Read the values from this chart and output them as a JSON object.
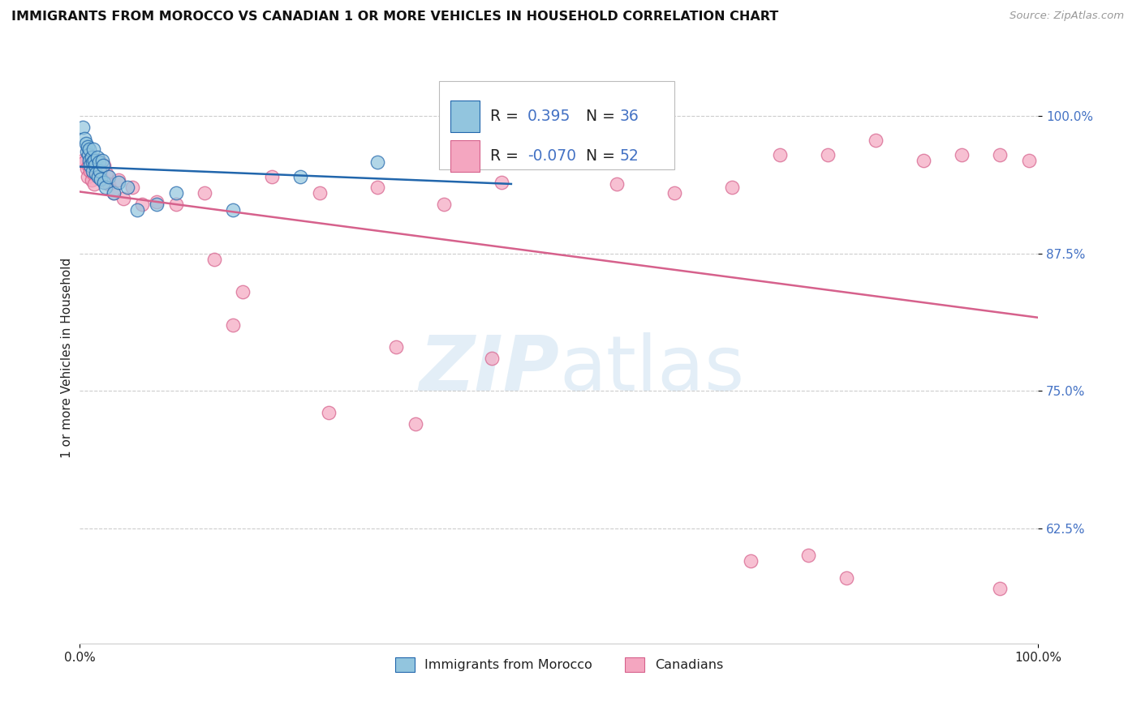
{
  "title": "IMMIGRANTS FROM MOROCCO VS CANADIAN 1 OR MORE VEHICLES IN HOUSEHOLD CORRELATION CHART",
  "source": "Source: ZipAtlas.com",
  "ylabel": "1 or more Vehicles in Household",
  "xlim": [
    0.0,
    1.0
  ],
  "ylim": [
    0.52,
    1.04
  ],
  "yticks": [
    0.625,
    0.75,
    0.875,
    1.0
  ],
  "ytick_labels": [
    "62.5%",
    "75.0%",
    "87.5%",
    "100.0%"
  ],
  "xtick_labels": [
    "0.0%",
    "100.0%"
  ],
  "blue_R": "0.395",
  "blue_N": "36",
  "pink_R": "-0.070",
  "pink_N": "52",
  "blue_face": "#92c5de",
  "blue_edge": "#4393c3",
  "pink_face": "#f4a6c0",
  "pink_edge": "#d6618c",
  "blue_line_color": "#2166ac",
  "pink_line_color": "#d6618c",
  "text_dark": "#222222",
  "axis_blue": "#4472c4",
  "grid_color": "#cccccc",
  "watermark_color": "#c8dff0",
  "legend_label_blue": "Immigrants from Morocco",
  "legend_label_pink": "Canadians",
  "blue_x": [
    0.003,
    0.005,
    0.006,
    0.007,
    0.008,
    0.009,
    0.01,
    0.01,
    0.011,
    0.012,
    0.013,
    0.013,
    0.014,
    0.015,
    0.016,
    0.017,
    0.018,
    0.019,
    0.02,
    0.021,
    0.022,
    0.023,
    0.024,
    0.025,
    0.027,
    0.03,
    0.035,
    0.04,
    0.05,
    0.06,
    0.08,
    0.1,
    0.16,
    0.23,
    0.31,
    0.45
  ],
  "blue_y": [
    0.99,
    0.98,
    0.975,
    0.968,
    0.972,
    0.965,
    0.96,
    0.97,
    0.955,
    0.963,
    0.958,
    0.95,
    0.97,
    0.96,
    0.955,
    0.948,
    0.963,
    0.945,
    0.958,
    0.95,
    0.943,
    0.96,
    0.955,
    0.94,
    0.935,
    0.945,
    0.93,
    0.94,
    0.935,
    0.915,
    0.92,
    0.93,
    0.915,
    0.945,
    0.958,
    0.96
  ],
  "pink_x": [
    0.003,
    0.005,
    0.007,
    0.008,
    0.009,
    0.01,
    0.011,
    0.012,
    0.013,
    0.014,
    0.015,
    0.016,
    0.018,
    0.02,
    0.022,
    0.025,
    0.028,
    0.03,
    0.035,
    0.04,
    0.045,
    0.055,
    0.065,
    0.08,
    0.1,
    0.13,
    0.16,
    0.2,
    0.25,
    0.31,
    0.38,
    0.44,
    0.56,
    0.62,
    0.68,
    0.73,
    0.78,
    0.83,
    0.88,
    0.92,
    0.96,
    0.99,
    0.14,
    0.17,
    0.33,
    0.43,
    0.26,
    0.35,
    0.7,
    0.76,
    0.8,
    0.96
  ],
  "pink_y": [
    0.96,
    0.958,
    0.952,
    0.945,
    0.955,
    0.965,
    0.95,
    0.942,
    0.96,
    0.948,
    0.938,
    0.955,
    0.948,
    0.96,
    0.945,
    0.955,
    0.948,
    0.938,
    0.93,
    0.942,
    0.925,
    0.935,
    0.92,
    0.922,
    0.92,
    0.93,
    0.81,
    0.945,
    0.93,
    0.935,
    0.92,
    0.94,
    0.938,
    0.93,
    0.935,
    0.965,
    0.965,
    0.978,
    0.96,
    0.965,
    0.965,
    0.96,
    0.87,
    0.84,
    0.79,
    0.78,
    0.73,
    0.72,
    0.595,
    0.6,
    0.58,
    0.57
  ]
}
